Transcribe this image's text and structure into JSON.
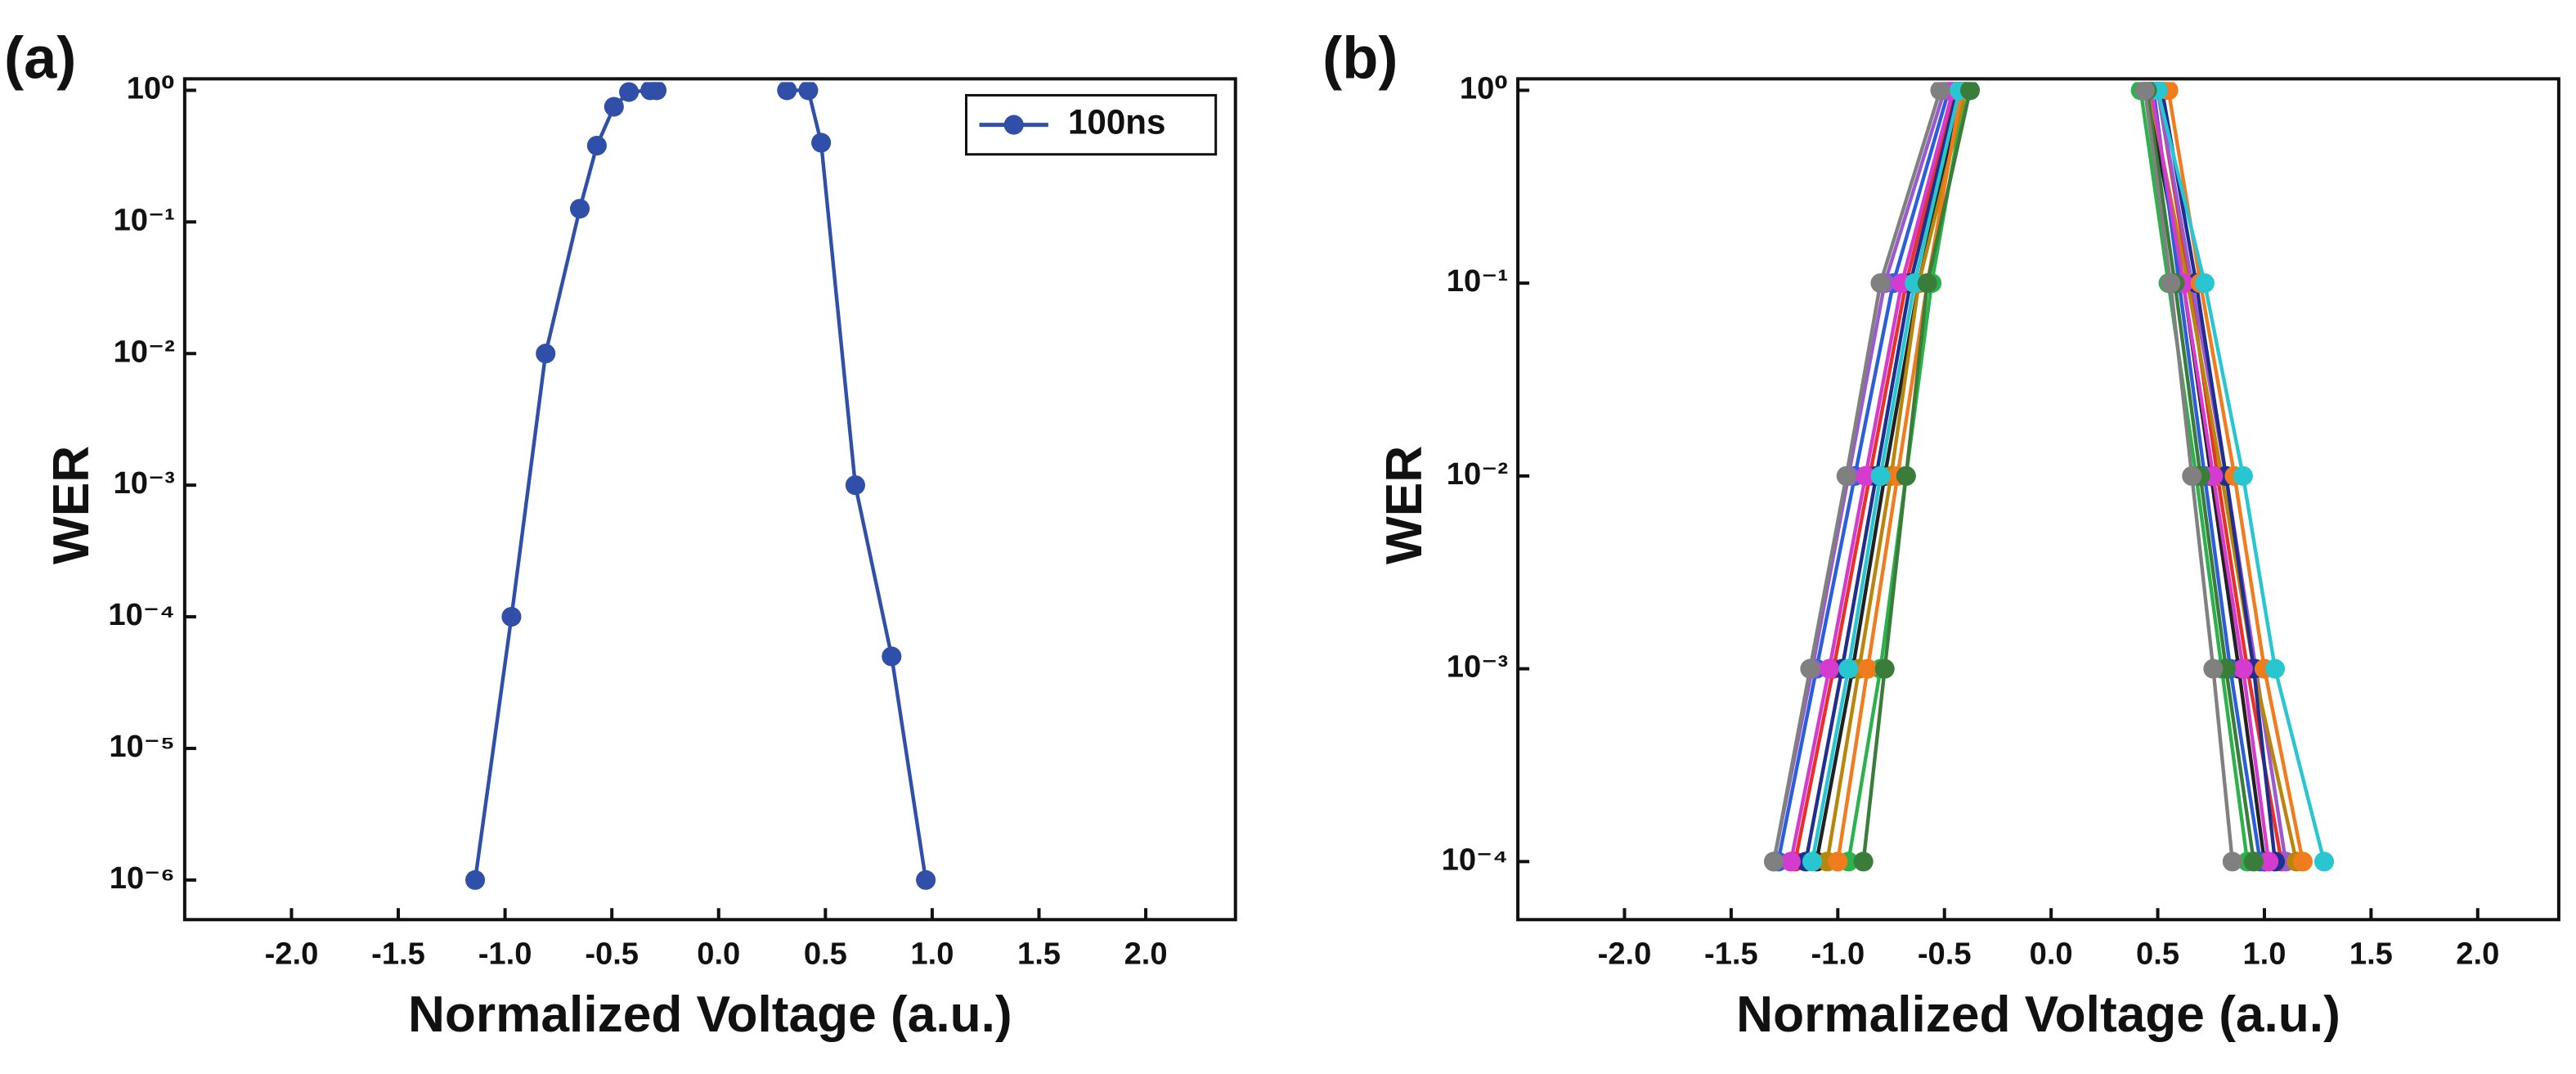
{
  "chart_data": [
    {
      "type": "line",
      "panel_label": "(a)",
      "xlabel": "Normalized Voltage (a.u.)",
      "ylabel": "WER",
      "log_y": true,
      "xlim": [
        -2.5,
        2.42
      ],
      "ylim": [
        5e-07,
        1
      ],
      "xticks": [
        {
          "value": -2,
          "label": "-2.0"
        },
        {
          "value": -1.5,
          "label": "-1.5"
        },
        {
          "value": -1,
          "label": "-1.0"
        },
        {
          "value": -0.5,
          "label": "-0.5"
        },
        {
          "value": 0,
          "label": "0.0"
        },
        {
          "value": 0.5,
          "label": "0.5"
        },
        {
          "value": 1,
          "label": "1.0"
        },
        {
          "value": 1.5,
          "label": "1.5"
        },
        {
          "value": 2,
          "label": "2.0"
        }
      ],
      "yticks": [
        {
          "value": 1e-06,
          "label": "10⁻⁶"
        },
        {
          "value": 1e-05,
          "label": "10⁻⁵"
        },
        {
          "value": 0.0001,
          "label": "10⁻⁴"
        },
        {
          "value": 0.001,
          "label": "10⁻³"
        },
        {
          "value": 0.01,
          "label": "10⁻²"
        },
        {
          "value": 0.1,
          "label": "10⁻¹"
        },
        {
          "value": 1,
          "label": "10⁰"
        }
      ],
      "legend": "upper right",
      "series": [
        {
          "name": "100ns",
          "color": "#2f4fa8",
          "x": [
            -1.14,
            -0.97,
            -0.81,
            -0.65,
            -0.57,
            -0.49,
            -0.42,
            -0.32,
            -0.29,
            null,
            0.32,
            0.42,
            0.48,
            0.64,
            0.81,
            0.97
          ],
          "values": [
            1e-06,
            0.0001,
            0.01,
            0.126,
            0.38,
            0.75,
            0.97,
            1,
            1,
            null,
            1,
            1,
            0.4,
            0.001,
            5e-05,
            1e-06
          ]
        }
      ]
    },
    {
      "type": "line",
      "panel_label": "(b)",
      "xlabel": "Normalized Voltage (a.u.)",
      "ylabel": "WER",
      "log_y": true,
      "xlim": [
        -2.5,
        2.38
      ],
      "ylim": [
        5e-05,
        1
      ],
      "xticks": [
        {
          "value": -2,
          "label": "-2.0"
        },
        {
          "value": -1.5,
          "label": "-1.5"
        },
        {
          "value": -1,
          "label": "-1.0"
        },
        {
          "value": -0.5,
          "label": "-0.5"
        },
        {
          "value": 0,
          "label": "0.0"
        },
        {
          "value": 0.5,
          "label": "0.5"
        },
        {
          "value": 1,
          "label": "1.0"
        },
        {
          "value": 1.5,
          "label": "1.5"
        },
        {
          "value": 2,
          "label": "2.0"
        }
      ],
      "yticks": [
        {
          "value": 0.0001,
          "label": "10⁻⁴"
        },
        {
          "value": 0.001,
          "label": "10⁻³"
        },
        {
          "value": 0.01,
          "label": "10⁻²"
        },
        {
          "value": 0.1,
          "label": "10⁻¹"
        },
        {
          "value": 1,
          "label": "10⁰"
        }
      ],
      "series": [
        {
          "color": "#222222",
          "x": [
            -1.1,
            -0.93,
            -0.78,
            -0.62,
            -0.42,
            null,
            0.45,
            0.62,
            0.75,
            0.88,
            1.0
          ],
          "values": [
            0.0001,
            0.001,
            0.01,
            0.1,
            1,
            null,
            1,
            0.1,
            0.01,
            0.001,
            0.0001
          ]
        },
        {
          "color": "#e8312a",
          "x": [
            -1.2,
            -1.02,
            -0.85,
            -0.68,
            -0.45,
            null,
            0.5,
            0.65,
            0.78,
            0.92,
            1.08
          ],
          "values": [
            0.0001,
            0.001,
            0.01,
            0.1,
            1,
            null,
            1,
            0.1,
            0.01,
            0.001,
            0.0001
          ]
        },
        {
          "color": "#2b5fd9",
          "x": [
            -1.28,
            -1.1,
            -0.92,
            -0.74,
            -0.48,
            null,
            0.48,
            0.6,
            0.72,
            0.84,
            0.98
          ],
          "values": [
            0.0001,
            0.001,
            0.01,
            0.1,
            1,
            null,
            1,
            0.1,
            0.01,
            0.001,
            0.0001
          ]
        },
        {
          "color": "#2bb24c",
          "x": [
            -0.95,
            -0.8,
            -0.68,
            -0.56,
            -0.4,
            null,
            0.42,
            0.55,
            0.68,
            0.8,
            0.92
          ],
          "values": [
            0.0001,
            0.001,
            0.01,
            0.1,
            1,
            null,
            1,
            0.1,
            0.01,
            0.001,
            0.0001
          ]
        },
        {
          "color": "#9b59d0",
          "x": [
            -1.3,
            -1.12,
            -0.95,
            -0.78,
            -0.5,
            null,
            0.5,
            0.66,
            0.82,
            0.96,
            1.1
          ],
          "values": [
            0.0001,
            0.001,
            0.01,
            0.1,
            1,
            null,
            1,
            0.1,
            0.01,
            0.001,
            0.0001
          ]
        },
        {
          "color": "#b8860b",
          "x": [
            -1.05,
            -0.9,
            -0.75,
            -0.62,
            -0.4,
            null,
            0.46,
            0.64,
            0.8,
            0.95,
            1.15
          ],
          "values": [
            0.0001,
            0.001,
            0.01,
            0.1,
            1,
            null,
            1,
            0.1,
            0.01,
            0.001,
            0.0001
          ]
        },
        {
          "color": "#1f2f8f",
          "x": [
            -1.15,
            -0.98,
            -0.82,
            -0.66,
            -0.44,
            null,
            0.52,
            0.68,
            0.82,
            0.95,
            1.05
          ],
          "values": [
            0.0001,
            0.001,
            0.01,
            0.1,
            1,
            null,
            1,
            0.1,
            0.01,
            0.001,
            0.0001
          ]
        },
        {
          "color": "#d63bd0",
          "x": [
            -1.22,
            -1.04,
            -0.87,
            -0.7,
            -0.46,
            null,
            0.47,
            0.62,
            0.76,
            0.9,
            1.02
          ],
          "values": [
            0.0001,
            0.001,
            0.01,
            0.1,
            1,
            null,
            1,
            0.1,
            0.01,
            0.001,
            0.0001
          ]
        },
        {
          "color": "#f07c1e",
          "x": [
            -1.0,
            -0.86,
            -0.72,
            -0.58,
            -0.42,
            null,
            0.55,
            0.7,
            0.86,
            1.0,
            1.18
          ],
          "values": [
            0.0001,
            0.001,
            0.01,
            0.1,
            1,
            null,
            1,
            0.1,
            0.01,
            0.001,
            0.0001
          ]
        },
        {
          "color": "#27c6d0",
          "x": [
            -1.12,
            -0.95,
            -0.8,
            -0.64,
            -0.43,
            null,
            0.5,
            0.72,
            0.9,
            1.05,
            1.28
          ],
          "values": [
            0.0001,
            0.001,
            0.01,
            0.1,
            1,
            null,
            1,
            0.1,
            0.01,
            0.001,
            0.0001
          ]
        },
        {
          "color": "#3a7d3a",
          "x": [
            -0.88,
            -0.78,
            -0.68,
            -0.58,
            -0.38,
            null,
            0.45,
            0.58,
            0.7,
            0.82,
            0.95
          ],
          "values": [
            0.0001,
            0.001,
            0.01,
            0.1,
            1,
            null,
            1,
            0.1,
            0.01,
            0.001,
            0.0001
          ]
        },
        {
          "color": "#808080",
          "x": [
            -1.3,
            -1.13,
            -0.96,
            -0.8,
            -0.52,
            null,
            0.44,
            0.56,
            0.66,
            0.76,
            0.85
          ],
          "values": [
            0.0001,
            0.001,
            0.01,
            0.1,
            1,
            null,
            1,
            0.1,
            0.01,
            0.001,
            0.0001
          ]
        }
      ]
    }
  ]
}
